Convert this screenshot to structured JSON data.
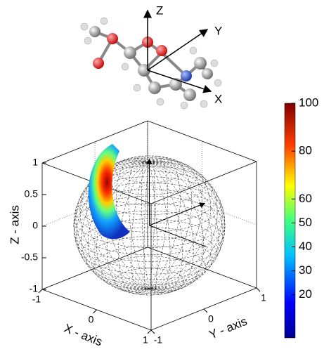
{
  "molecule_axes": {
    "z_label": "Z",
    "y_label": "Y",
    "x_label": "X"
  },
  "chart_data": {
    "type": "sphere3d",
    "xlabel": "X - axis",
    "ylabel": "Y - axis",
    "zlabel": "Z - axis",
    "xlim": [
      -1,
      1
    ],
    "ylim": [
      -1,
      1
    ],
    "zlim": [
      -1,
      1
    ],
    "xticks": [
      -1,
      0,
      1
    ],
    "yticks": [
      -1,
      0,
      1
    ],
    "zticks": [
      -1,
      -0.5,
      0,
      0.5,
      1
    ],
    "clim": [
      2,
      100
    ],
    "cticks": [
      20,
      30,
      40,
      50,
      60,
      80,
      100
    ]
  }
}
